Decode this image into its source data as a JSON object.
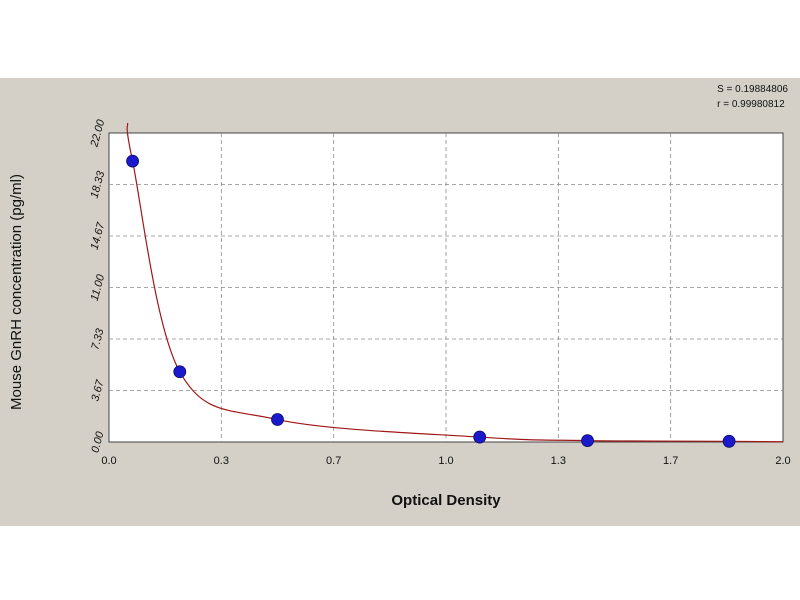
{
  "chart_data": {
    "type": "scatter",
    "xlabel": "Optical Density",
    "ylabel": "Mouse GnRH concentration (pg/ml)",
    "xlim": [
      0.0,
      2.0
    ],
    "ylim": [
      0.0,
      22.0
    ],
    "x_ticks": [
      "0.0",
      "0.3",
      "0.7",
      "1.0",
      "1.3",
      "1.7",
      "2.0"
    ],
    "y_ticks": [
      "0.00",
      "3.67",
      "7.33",
      "11.00",
      "14.67",
      "18.33",
      "22.00"
    ],
    "grid": true,
    "stats": [
      "S = 0.19884806",
      "r = 0.99980812"
    ],
    "series": [
      {
        "points": [
          {
            "x": 0.07,
            "y": 20.0
          },
          {
            "x": 0.21,
            "y": 5.0
          },
          {
            "x": 0.5,
            "y": 1.6
          },
          {
            "x": 1.1,
            "y": 0.35
          },
          {
            "x": 1.42,
            "y": 0.1
          },
          {
            "x": 1.84,
            "y": 0.05
          }
        ],
        "color": "#1a1acc"
      }
    ],
    "fit_curve_color": "#a01818"
  }
}
